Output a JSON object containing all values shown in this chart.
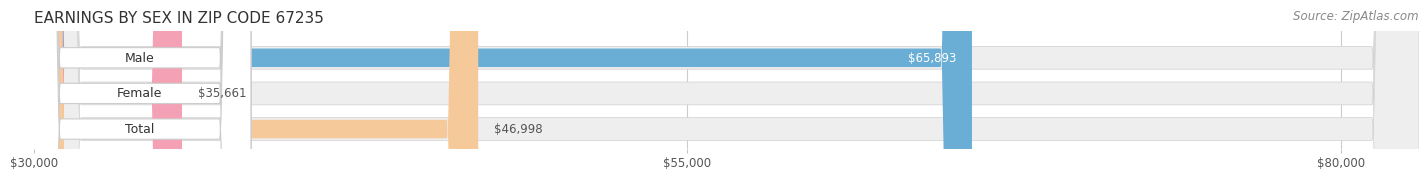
{
  "title": "EARNINGS BY SEX IN ZIP CODE 67235",
  "source": "Source: ZipAtlas.com",
  "categories": [
    "Male",
    "Female",
    "Total"
  ],
  "values": [
    65893,
    35661,
    46998
  ],
  "bar_colors": [
    "#6AAED6",
    "#F4A0B5",
    "#F5C99A"
  ],
  "value_label_inside": [
    true,
    false,
    false
  ],
  "value_label_colors_inside": [
    "#ffffff"
  ],
  "value_label_colors_outside": [
    "#555555"
  ],
  "value_labels": [
    "$65,893",
    "$35,661",
    "$46,998"
  ],
  "xmin": 30000,
  "xmax": 83000,
  "xticks": [
    30000,
    55000,
    80000
  ],
  "xtick_labels": [
    "$30,000",
    "$55,000",
    "$80,000"
  ],
  "background_color": "#ffffff",
  "bar_bg_color": "#e8e8e8",
  "bar_bg_color2": "#f0f0f0",
  "title_fontsize": 11,
  "source_fontsize": 8.5,
  "bar_height": 0.52,
  "label_box_color": "#ffffff",
  "label_text_color": "#333333"
}
